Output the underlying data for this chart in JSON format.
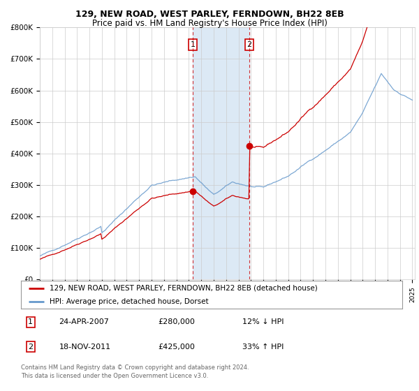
{
  "title": "129, NEW ROAD, WEST PARLEY, FERNDOWN, BH22 8EB",
  "subtitle": "Price paid vs. HM Land Registry's House Price Index (HPI)",
  "legend_entries": [
    "129, NEW ROAD, WEST PARLEY, FERNDOWN, BH22 8EB (detached house)",
    "HPI: Average price, detached house, Dorset"
  ],
  "legend_colors": [
    "#cc0000",
    "#6699cc"
  ],
  "table_rows": [
    {
      "num": "1",
      "date": "24-APR-2007",
      "price": "£280,000",
      "hpi": "12% ↓ HPI"
    },
    {
      "num": "2",
      "date": "18-NOV-2011",
      "price": "£425,000",
      "hpi": "33% ↑ HPI"
    }
  ],
  "footnote": "Contains HM Land Registry data © Crown copyright and database right 2024.\nThis data is licensed under the Open Government Licence v3.0.",
  "sale1_year": 2007.31,
  "sale2_year": 2011.88,
  "sale1_price": 280000,
  "sale2_price": 425000,
  "ylim": [
    0,
    800000
  ],
  "yticks": [
    0,
    100000,
    200000,
    300000,
    400000,
    500000,
    600000,
    700000,
    800000
  ],
  "ytick_labels": [
    "£0",
    "£100K",
    "£200K",
    "£300K",
    "£400K",
    "£500K",
    "£600K",
    "£700K",
    "£800K"
  ],
  "xlim_start": 1995,
  "xlim_end": 2025.2,
  "background_color": "#ffffff",
  "grid_color": "#cccccc",
  "highlight_color": "#dce9f5",
  "red_line_color": "#cc0000",
  "blue_line_color": "#6699cc",
  "title_fontsize": 9,
  "subtitle_fontsize": 8.5
}
